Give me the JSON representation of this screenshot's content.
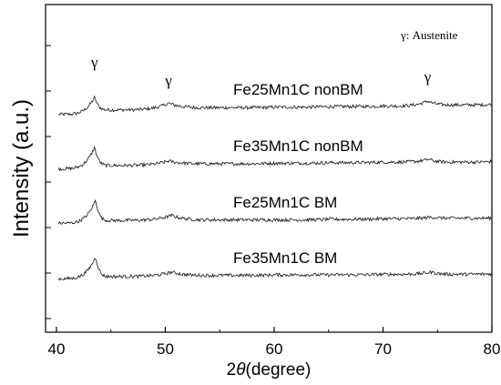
{
  "chart_data": {
    "type": "line",
    "title": "",
    "xlabel": "2θ(degree)",
    "xlabel_prefix": "2",
    "xlabel_theta": "θ",
    "xlabel_suffix": "(degree)",
    "ylabel": "Intensity (a.u.)",
    "xlim": [
      39,
      80
    ],
    "x_ticks": [
      40,
      50,
      60,
      70,
      80
    ],
    "y_ticks_labeled": false,
    "grid": false,
    "legend_note": "γ: Austenite",
    "peak_markers": [
      {
        "label": "γ",
        "x": 43.5
      },
      {
        "label": "γ",
        "x": 50.3
      },
      {
        "label": "γ",
        "x": 74.1
      }
    ],
    "series": [
      {
        "name": "Fe25Mn1C nonBM",
        "baseline": 3.0,
        "points": [
          [
            40.2,
            2.94
          ],
          [
            43.5,
            3.25
          ],
          [
            45,
            3.02
          ],
          [
            50.3,
            3.14
          ],
          [
            55,
            3.06
          ],
          [
            60,
            3.07
          ],
          [
            65,
            3.08
          ],
          [
            70,
            3.09
          ],
          [
            74.1,
            3.18
          ],
          [
            77,
            3.11
          ],
          [
            80,
            3.12
          ]
        ]
      },
      {
        "name": "Fe35Mn1C nonBM",
        "baseline": 2.0,
        "points": [
          [
            40.2,
            1.96
          ],
          [
            43.5,
            2.35
          ],
          [
            45,
            2.02
          ],
          [
            50.3,
            2.1
          ],
          [
            55,
            2.05
          ],
          [
            60,
            2.06
          ],
          [
            65,
            2.07
          ],
          [
            70,
            2.08
          ],
          [
            74.2,
            2.13
          ],
          [
            77,
            2.08
          ],
          [
            80,
            2.09
          ]
        ]
      },
      {
        "name": "Fe25Mn1C BM",
        "baseline": 1.0,
        "points": [
          [
            40.2,
            0.98
          ],
          [
            43.6,
            1.4
          ],
          [
            45,
            1.03
          ],
          [
            50.6,
            1.12
          ],
          [
            55,
            1.04
          ],
          [
            60,
            1.04
          ],
          [
            65,
            1.05
          ],
          [
            70,
            1.06
          ],
          [
            74.5,
            1.09
          ],
          [
            77,
            1.07
          ],
          [
            80,
            1.07
          ]
        ]
      },
      {
        "name": "Fe35Mn1C BM",
        "baseline": 0.0,
        "points": [
          [
            40.2,
            -0.02
          ],
          [
            43.6,
            0.38
          ],
          [
            45,
            0.02
          ],
          [
            50.6,
            0.1
          ],
          [
            55,
            0.04
          ],
          [
            60,
            0.05
          ],
          [
            65,
            0.05
          ],
          [
            70,
            0.06
          ],
          [
            74.5,
            0.1
          ],
          [
            77,
            0.06
          ],
          [
            80,
            0.07
          ]
        ]
      }
    ]
  }
}
